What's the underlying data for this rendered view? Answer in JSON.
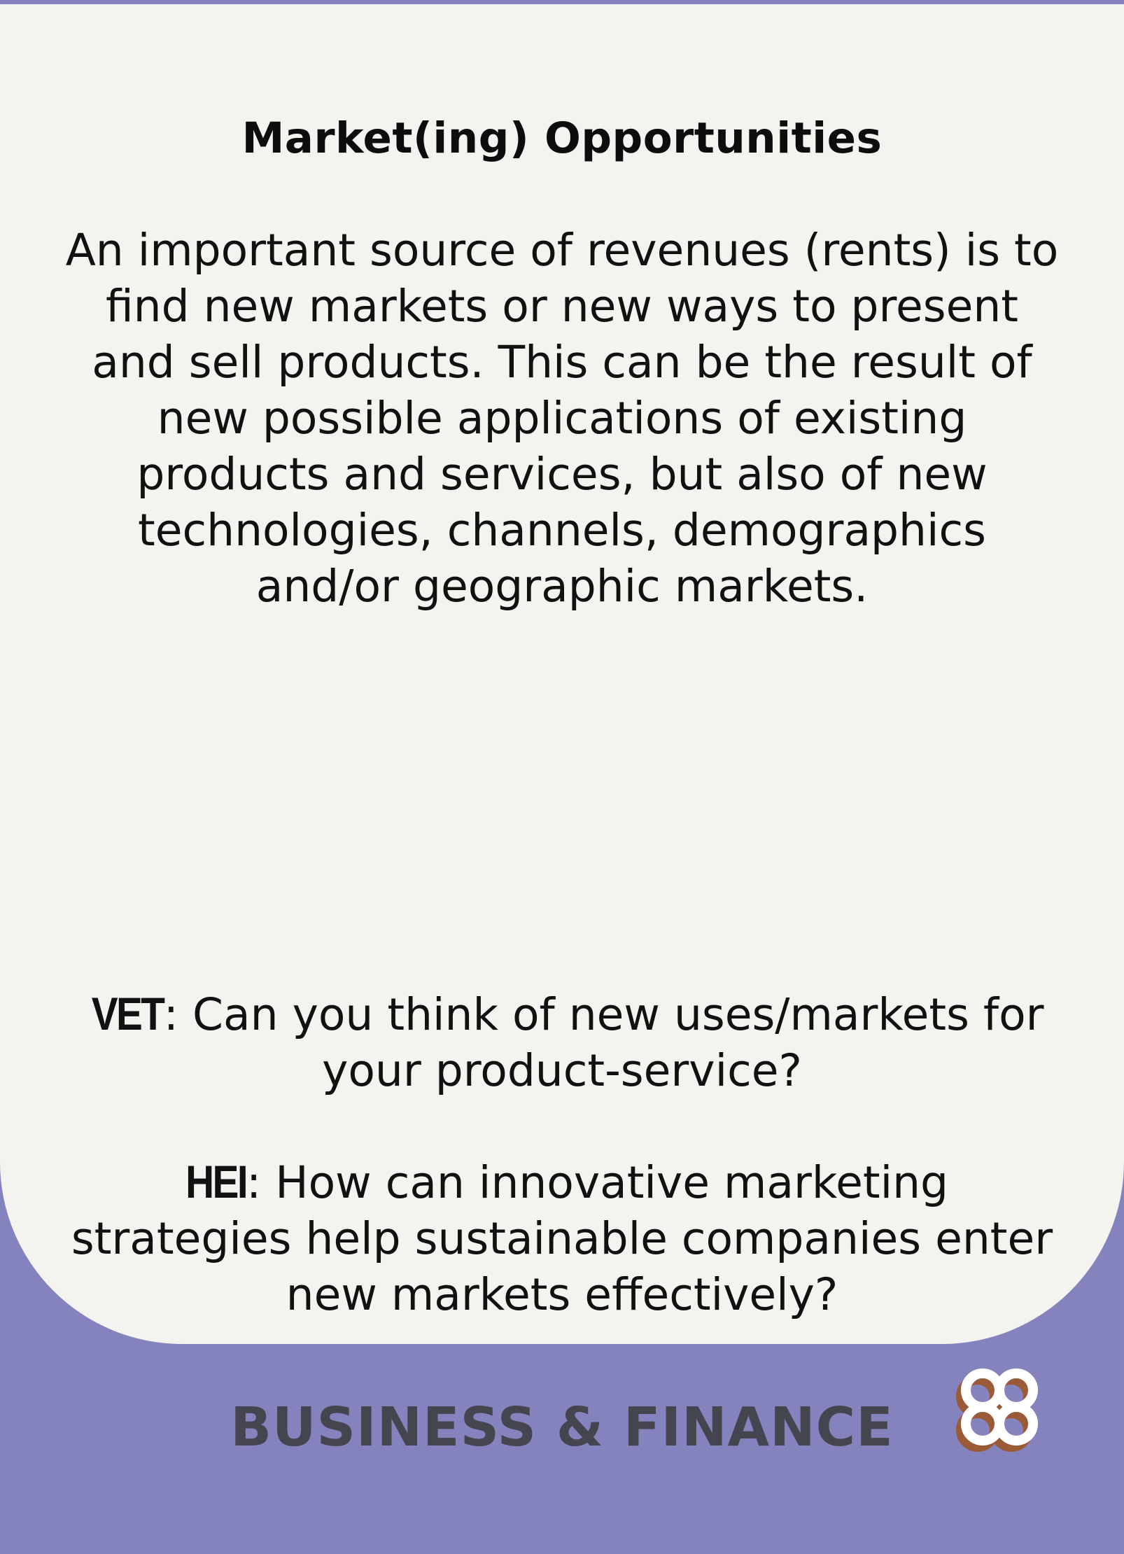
{
  "card": {
    "title": "Market(ing) Opportunities",
    "body": "An important source of revenues (rents) is to find new markets or new ways to present and sell products. This can be the result of new possible applications of existing products and services, but also of new technologies, channels, demographics and/or geographic markets."
  },
  "questions": {
    "vet": {
      "tag": "VET",
      "text": ": Can you think of new uses/markets for your product-service?"
    },
    "hei": {
      "tag": "HEI",
      "text": ": How can innovative marketing strategies help sustainable companies enter new markets effectively?"
    }
  },
  "footer": {
    "category": "BUSINESS & FINANCE",
    "logo_icon": "quatrefoil-logo-icon"
  },
  "colors": {
    "background": "#8583bd",
    "card": "#f3f3ef",
    "text": "#111111",
    "category_text": "#45454f",
    "logo_shadow": "#9a5a35",
    "logo_front": "#ffffff"
  }
}
